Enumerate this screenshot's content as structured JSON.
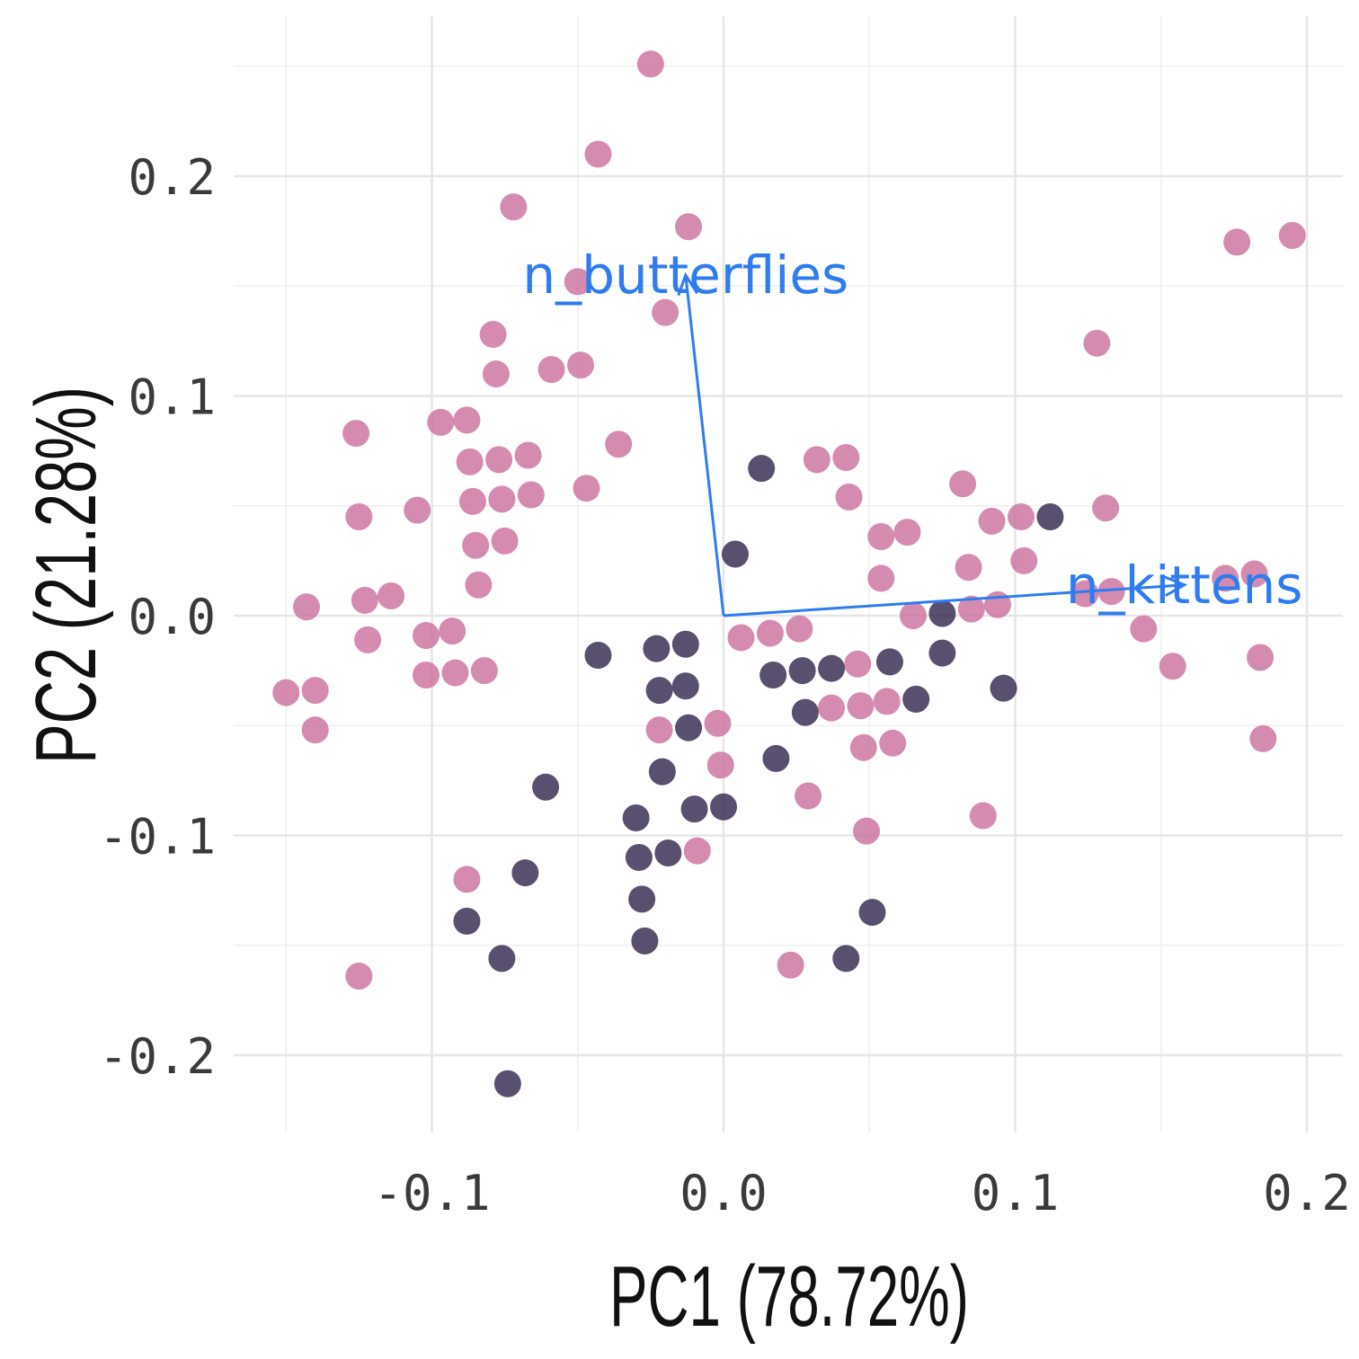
{
  "chart_data": {
    "type": "scatter",
    "xlabel": "PC1 (78.72%)",
    "ylabel": "PC2 (21.28%)",
    "xlim": [
      -0.15,
      0.2
    ],
    "ylim": [
      -0.215,
      0.25
    ],
    "x_ticks": [
      -0.1,
      0.0,
      0.1,
      0.2
    ],
    "x_tick_labels": [
      "-0.1",
      "0.0",
      "0.1",
      "0.2"
    ],
    "y_ticks": [
      -0.2,
      -0.1,
      0.0,
      0.1,
      0.2
    ],
    "y_tick_labels": [
      "-0.2",
      "-0.1",
      "0.0",
      "0.1",
      "0.2"
    ],
    "grid": true,
    "legend": "none",
    "colors": {
      "pink": "#c96a9a",
      "dark": "#2a1e45",
      "arrow": "#2f7bf0"
    },
    "series": [
      {
        "color": "#c96a9a",
        "points": [
          [
            -0.025,
            0.251
          ],
          [
            -0.043,
            0.21
          ],
          [
            -0.072,
            0.186
          ],
          [
            -0.012,
            0.177
          ],
          [
            -0.05,
            0.152
          ],
          [
            -0.02,
            0.138
          ],
          [
            -0.079,
            0.128
          ],
          [
            -0.078,
            0.11
          ],
          [
            -0.059,
            0.112
          ],
          [
            -0.049,
            0.114
          ],
          [
            -0.097,
            0.088
          ],
          [
            -0.088,
            0.089
          ],
          [
            -0.126,
            0.083
          ],
          [
            -0.036,
            0.078
          ],
          [
            -0.087,
            0.07
          ],
          [
            -0.077,
            0.071
          ],
          [
            -0.067,
            0.073
          ],
          [
            -0.086,
            0.052
          ],
          [
            -0.076,
            0.053
          ],
          [
            -0.066,
            0.055
          ],
          [
            -0.047,
            0.058
          ],
          [
            -0.105,
            0.048
          ],
          [
            -0.125,
            0.045
          ],
          [
            -0.085,
            0.032
          ],
          [
            -0.075,
            0.034
          ],
          [
            -0.084,
            0.014
          ],
          [
            -0.114,
            0.009
          ],
          [
            -0.123,
            0.007
          ],
          [
            -0.143,
            0.004
          ],
          [
            -0.093,
            -0.007
          ],
          [
            -0.102,
            -0.009
          ],
          [
            -0.122,
            -0.011
          ],
          [
            -0.102,
            -0.027
          ],
          [
            -0.092,
            -0.026
          ],
          [
            -0.082,
            -0.025
          ],
          [
            -0.15,
            -0.035
          ],
          [
            -0.14,
            -0.034
          ],
          [
            -0.14,
            -0.052
          ],
          [
            -0.088,
            -0.12
          ],
          [
            -0.125,
            -0.164
          ],
          [
            0.032,
            0.071
          ],
          [
            0.042,
            0.072
          ],
          [
            0.043,
            0.054
          ],
          [
            0.054,
            0.036
          ],
          [
            0.063,
            0.038
          ],
          [
            0.082,
            0.06
          ],
          [
            0.092,
            0.043
          ],
          [
            0.102,
            0.045
          ],
          [
            0.103,
            0.025
          ],
          [
            0.084,
            0.022
          ],
          [
            0.054,
            0.017
          ],
          [
            0.065,
            0.0
          ],
          [
            0.085,
            0.003
          ],
          [
            0.094,
            0.005
          ],
          [
            0.124,
            0.01
          ],
          [
            0.133,
            0.011
          ],
          [
            0.131,
            0.049
          ],
          [
            0.128,
            0.124
          ],
          [
            0.176,
            0.17
          ],
          [
            0.195,
            0.173
          ],
          [
            0.172,
            0.017
          ],
          [
            0.182,
            0.019
          ],
          [
            0.144,
            -0.006
          ],
          [
            0.154,
            -0.023
          ],
          [
            0.184,
            -0.019
          ],
          [
            0.185,
            -0.056
          ],
          [
            0.006,
            -0.01
          ],
          [
            0.016,
            -0.008
          ],
          [
            0.026,
            -0.006
          ],
          [
            0.046,
            -0.022
          ],
          [
            0.037,
            -0.042
          ],
          [
            0.047,
            -0.041
          ],
          [
            0.056,
            -0.039
          ],
          [
            0.048,
            -0.06
          ],
          [
            0.058,
            -0.058
          ],
          [
            0.029,
            -0.082
          ],
          [
            0.049,
            -0.098
          ],
          [
            0.089,
            -0.091
          ],
          [
            0.023,
            -0.159
          ],
          [
            -0.022,
            -0.052
          ],
          [
            -0.002,
            -0.049
          ],
          [
            -0.001,
            -0.068
          ],
          [
            -0.009,
            -0.107
          ]
        ]
      },
      {
        "color": "#2a1e45",
        "points": [
          [
            0.013,
            0.067
          ],
          [
            0.004,
            0.028
          ],
          [
            0.112,
            0.045
          ],
          [
            0.075,
            0.001
          ],
          [
            0.075,
            -0.017
          ],
          [
            0.096,
            -0.033
          ],
          [
            0.066,
            -0.038
          ],
          [
            0.057,
            -0.021
          ],
          [
            0.037,
            -0.024
          ],
          [
            0.027,
            -0.025
          ],
          [
            0.017,
            -0.027
          ],
          [
            0.028,
            -0.044
          ],
          [
            0.018,
            -0.065
          ],
          [
            -0.043,
            -0.018
          ],
          [
            -0.023,
            -0.015
          ],
          [
            -0.013,
            -0.013
          ],
          [
            -0.022,
            -0.034
          ],
          [
            -0.013,
            -0.032
          ],
          [
            -0.012,
            -0.051
          ],
          [
            -0.021,
            -0.071
          ],
          [
            -0.01,
            -0.088
          ],
          [
            0.0,
            -0.087
          ],
          [
            -0.03,
            -0.092
          ],
          [
            -0.019,
            -0.108
          ],
          [
            -0.029,
            -0.11
          ],
          [
            -0.028,
            -0.129
          ],
          [
            -0.027,
            -0.148
          ],
          [
            -0.068,
            -0.117
          ],
          [
            -0.088,
            -0.139
          ],
          [
            -0.076,
            -0.156
          ],
          [
            -0.061,
            -0.078
          ],
          [
            -0.074,
            -0.213
          ],
          [
            0.042,
            -0.156
          ],
          [
            0.051,
            -0.135
          ]
        ]
      }
    ],
    "arrows": [
      {
        "label": "n_butterflies",
        "from": [
          0.0,
          0.0
        ],
        "to": [
          -0.013,
          0.155
        ]
      },
      {
        "label": "n_kittens",
        "from": [
          0.0,
          0.0
        ],
        "to": [
          0.158,
          0.014
        ]
      }
    ]
  }
}
